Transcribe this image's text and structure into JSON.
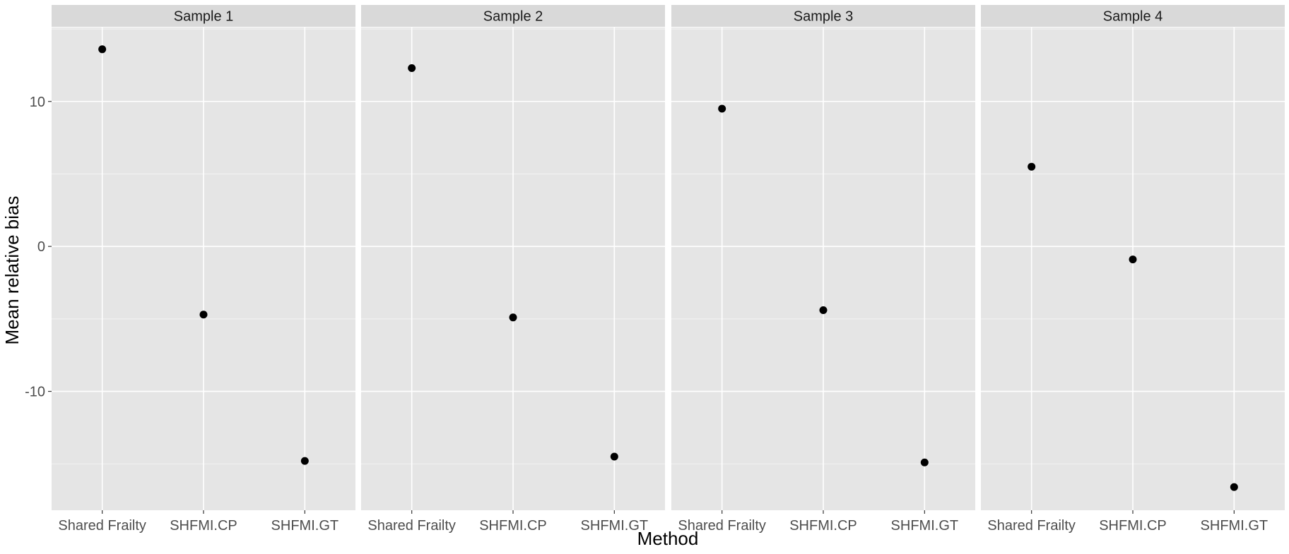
{
  "chart_data": {
    "type": "scatter",
    "facets": [
      "Sample 1",
      "Sample 2",
      "Sample 3",
      "Sample 4"
    ],
    "categories": [
      "Shared Frailty",
      "SHFMI.CP",
      "SHFMI.GT"
    ],
    "values": [
      [
        13.6,
        -4.7,
        -14.8
      ],
      [
        12.3,
        -4.9,
        -14.5
      ],
      [
        9.5,
        -4.4,
        -14.9
      ],
      [
        5.5,
        -0.9,
        -16.6
      ]
    ],
    "xlabel": "Method",
    "ylabel": "Mean relative bias",
    "ylim": [
      -18.2,
      15.1
    ],
    "yticks": [
      -10,
      0,
      10
    ],
    "ytick_labels": [
      "-10",
      "0",
      "10"
    ],
    "grid": true,
    "colors": {
      "panel": "#e5e5e5",
      "strip": "#d9d9d9",
      "grid": "#ffffff",
      "point": "#000000"
    }
  }
}
